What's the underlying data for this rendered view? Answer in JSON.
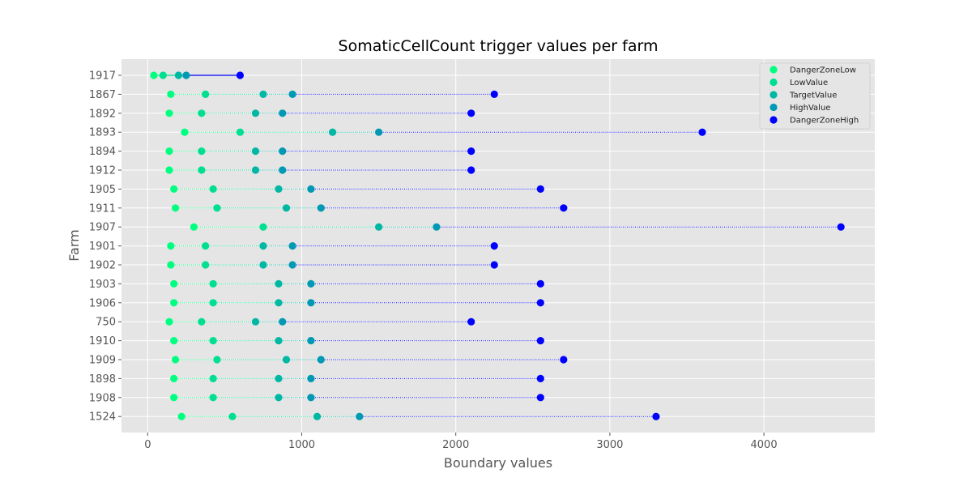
{
  "chart_data": {
    "type": "scatter",
    "title": "SomaticCellCount trigger values per farm",
    "xlabel": "Boundary values",
    "ylabel": "Farm",
    "xlim": [
      -170,
      4720
    ],
    "xticks": [
      0,
      1000,
      2000,
      3000,
      4000
    ],
    "xtick_labels": [
      "0",
      "1000",
      "2000",
      "3000",
      "4000"
    ],
    "grid": true,
    "legend_position": "top-right",
    "series": [
      {
        "name": "DangerZoneLow",
        "color": "#00ff80"
      },
      {
        "name": "LowValue",
        "color": "#00df91"
      },
      {
        "name": "TargetValue",
        "color": "#00b7a4"
      },
      {
        "name": "HighValue",
        "color": "#0099b3"
      },
      {
        "name": "DangerZoneHigh",
        "color": "#0000ff"
      }
    ],
    "farms": [
      {
        "farm": "1917",
        "values": [
          40,
          100,
          200,
          250,
          600
        ]
      },
      {
        "farm": "1867",
        "values": [
          150,
          375,
          750,
          940,
          2250
        ]
      },
      {
        "farm": "1892",
        "values": [
          140,
          350,
          700,
          875,
          2100
        ]
      },
      {
        "farm": "1893",
        "values": [
          240,
          600,
          1200,
          1500,
          3600
        ]
      },
      {
        "farm": "1894",
        "values": [
          140,
          350,
          700,
          875,
          2100
        ]
      },
      {
        "farm": "1912",
        "values": [
          140,
          350,
          700,
          875,
          2100
        ]
      },
      {
        "farm": "1905",
        "values": [
          170,
          425,
          850,
          1060,
          2550
        ]
      },
      {
        "farm": "1911",
        "values": [
          180,
          450,
          900,
          1125,
          2700
        ]
      },
      {
        "farm": "1907",
        "values": [
          300,
          750,
          1500,
          1875,
          4500
        ]
      },
      {
        "farm": "1901",
        "values": [
          150,
          375,
          750,
          940,
          2250
        ]
      },
      {
        "farm": "1902",
        "values": [
          150,
          375,
          750,
          940,
          2250
        ]
      },
      {
        "farm": "1903",
        "values": [
          170,
          425,
          850,
          1060,
          2550
        ]
      },
      {
        "farm": "1906",
        "values": [
          170,
          425,
          850,
          1060,
          2550
        ]
      },
      {
        "farm": "750",
        "values": [
          140,
          350,
          700,
          875,
          2100
        ]
      },
      {
        "farm": "1910",
        "values": [
          170,
          425,
          850,
          1060,
          2550
        ]
      },
      {
        "farm": "1909",
        "values": [
          180,
          450,
          900,
          1125,
          2700
        ]
      },
      {
        "farm": "1898",
        "values": [
          170,
          425,
          850,
          1060,
          2550
        ]
      },
      {
        "farm": "1908",
        "values": [
          170,
          425,
          850,
          1060,
          2550
        ]
      },
      {
        "farm": "1524",
        "values": [
          220,
          550,
          1100,
          1375,
          3300
        ]
      }
    ]
  }
}
